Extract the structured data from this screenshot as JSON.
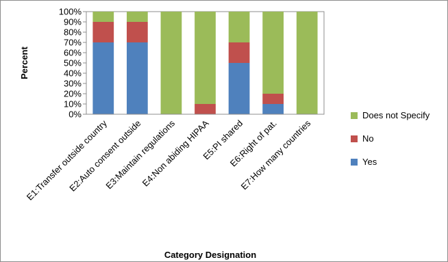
{
  "chart_data": {
    "type": "stacked-bar-100",
    "categories": [
      "E1:Transfer outside country",
      "E2:Auto consent outside",
      "E3:Maintain regulations",
      "E4:Non abiding HIPAA",
      "E5:PI shared",
      "E6:Right of pat.",
      "E7:How many countries"
    ],
    "series": [
      {
        "name": "Yes",
        "color": "#4f81bd",
        "values": [
          70,
          70,
          0,
          0,
          50,
          10,
          0
        ]
      },
      {
        "name": "No",
        "color": "#c0504d",
        "values": [
          20,
          20,
          0,
          10,
          20,
          10,
          0
        ]
      },
      {
        "name": "Does not Specify",
        "color": "#9bbb59",
        "values": [
          10,
          10,
          100,
          90,
          30,
          80,
          100
        ]
      }
    ],
    "yticks": [
      "0%",
      "10%",
      "20%",
      "30%",
      "40%",
      "50%",
      "60%",
      "70%",
      "80%",
      "90%",
      "100%"
    ],
    "ylim": [
      0,
      100
    ],
    "xlabel": "Category Designation",
    "ylabel": "Percent",
    "legend": [
      "Does not Specify",
      "No",
      "Yes"
    ],
    "legend_position": "right",
    "grid": false
  }
}
